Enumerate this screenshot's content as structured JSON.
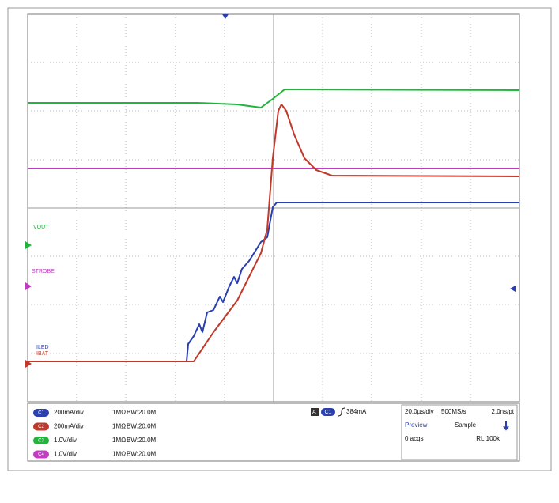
{
  "markers": {
    "vout": "VOUT",
    "strobe": "STROBE",
    "iled": "ILED",
    "ibat": "IBAT"
  },
  "channels": [
    {
      "id": "C1",
      "scale": "200mA/div",
      "impedance": "1MΩ",
      "bandwidth": "BW:20.0M",
      "color": "#2a3fb0"
    },
    {
      "id": "C2",
      "scale": "200mA/div",
      "impedance": "1MΩ",
      "bandwidth": "BW:20.0M",
      "color": "#c0392b"
    },
    {
      "id": "C3",
      "scale": "1.0V/div",
      "impedance": "1MΩ",
      "bandwidth": "BW:20.0M",
      "color": "#22b43c"
    },
    {
      "id": "C4",
      "scale": "1.0V/div",
      "impedance": "1MΩ",
      "bandwidth": "BW:20.0M",
      "color": "#c03cc0"
    }
  ],
  "trigger": {
    "icon": "A",
    "source": "C1",
    "level": "384mA"
  },
  "timebase": {
    "scale": "20.0µs/div",
    "sample_rate": "500MS/s",
    "resolution": "2.0ns/pt",
    "mode": "Preview",
    "acquisition": "Sample",
    "acqs": "0 acqs",
    "record": "RL:100k"
  }
}
